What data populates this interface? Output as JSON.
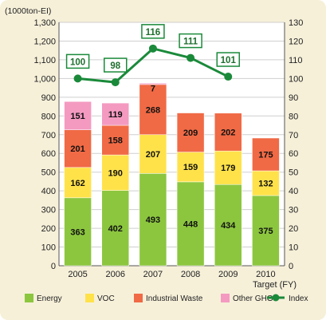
{
  "chart_data": {
    "type": "bar",
    "y_unit_label": "(1000ton-EI)",
    "x_suffix": "Target (FY)",
    "categories": [
      "2005",
      "2006",
      "2007",
      "2008",
      "2009",
      "2010"
    ],
    "ylim_left": [
      0,
      1300
    ],
    "yticks_left": [
      0,
      100,
      200,
      300,
      400,
      500,
      600,
      700,
      800,
      900,
      "1,000",
      "1,100",
      "1,200",
      "1,300"
    ],
    "ylim_right": [
      0,
      130
    ],
    "yticks_right": [
      0,
      10,
      20,
      30,
      40,
      50,
      60,
      70,
      80,
      90,
      100,
      110,
      120,
      130
    ],
    "series": [
      {
        "name": "Energy",
        "color": "#8cc63f",
        "values": [
          363,
          402,
          493,
          448,
          434,
          375
        ]
      },
      {
        "name": "VOC",
        "color": "#ffe24a",
        "values": [
          162,
          190,
          207,
          159,
          179,
          132
        ]
      },
      {
        "name": "Industrial Waste",
        "color": "#f06a45",
        "values": [
          201,
          158,
          268,
          209,
          202,
          175
        ]
      },
      {
        "name": "Other GHG",
        "color": "#f49ac1",
        "values": [
          151,
          119,
          7,
          null,
          null,
          null
        ]
      }
    ],
    "index": {
      "name": "Index",
      "color": "#1a8a3a",
      "values": [
        100,
        98,
        116,
        111,
        101,
        null
      ]
    },
    "legend_position": "bottom"
  }
}
